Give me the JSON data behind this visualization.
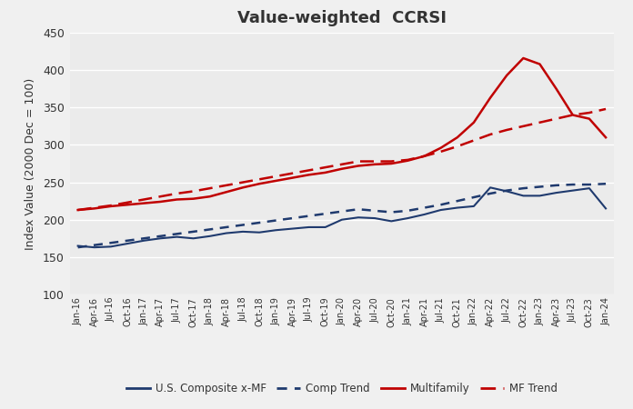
{
  "title": "Value-weighted  CCRSI",
  "ylabel": "Index Value (2000 Dec = 100)",
  "ylim": [
    100,
    450
  ],
  "yticks": [
    100,
    150,
    200,
    250,
    300,
    350,
    400,
    450
  ],
  "background_color": "#f0f0f0",
  "plot_bg_color": "#ebebeb",
  "blue_solid_color": "#1f3a6e",
  "blue_dash_color": "#1f3a6e",
  "red_solid_color": "#c00000",
  "red_dash_color": "#c00000",
  "x_labels": [
    "Jan-16",
    "Apr-16",
    "Jul-16",
    "Oct-16",
    "Jan-17",
    "Apr-17",
    "Jul-17",
    "Oct-17",
    "Jan-18",
    "Apr-18",
    "Jul-18",
    "Oct-18",
    "Jan-19",
    "Apr-19",
    "Jul-19",
    "Oct-19",
    "Jan-20",
    "Apr-20",
    "Jul-20",
    "Oct-20",
    "Jan-21",
    "Apr-21",
    "Jul-21",
    "Oct-21",
    "Jan-22",
    "Apr-22",
    "Jul-22",
    "Oct-22",
    "Jan-23",
    "Apr-23",
    "Jul-23",
    "Oct-23",
    "Jan-24"
  ],
  "composite_xmf": [
    165,
    163,
    164,
    168,
    172,
    175,
    177,
    175,
    178,
    182,
    184,
    183,
    186,
    188,
    190,
    190,
    200,
    203,
    202,
    198,
    202,
    207,
    213,
    216,
    218,
    243,
    238,
    232,
    232,
    236,
    239,
    242,
    215
  ],
  "comp_trend": [
    163,
    166,
    169,
    172,
    175,
    178,
    181,
    184,
    187,
    190,
    193,
    196,
    199,
    202,
    205,
    208,
    211,
    214,
    212,
    210,
    212,
    216,
    220,
    225,
    230,
    235,
    239,
    242,
    244,
    246,
    247,
    247,
    248
  ],
  "multifamily": [
    213,
    215,
    218,
    220,
    222,
    224,
    227,
    228,
    231,
    237,
    243,
    248,
    252,
    256,
    260,
    263,
    268,
    272,
    274,
    275,
    279,
    285,
    296,
    310,
    330,
    363,
    393,
    416,
    408,
    375,
    340,
    335,
    310
  ],
  "mf_trend": [
    213,
    216,
    219,
    223,
    227,
    231,
    235,
    238,
    242,
    246,
    250,
    254,
    258,
    262,
    266,
    270,
    274,
    278,
    278,
    278,
    280,
    285,
    291,
    298,
    306,
    314,
    320,
    325,
    330,
    335,
    340,
    343,
    348
  ],
  "legend_labels": [
    "U.S. Composite x-MF",
    "Comp Trend",
    "Multifamily",
    "MF Trend"
  ]
}
